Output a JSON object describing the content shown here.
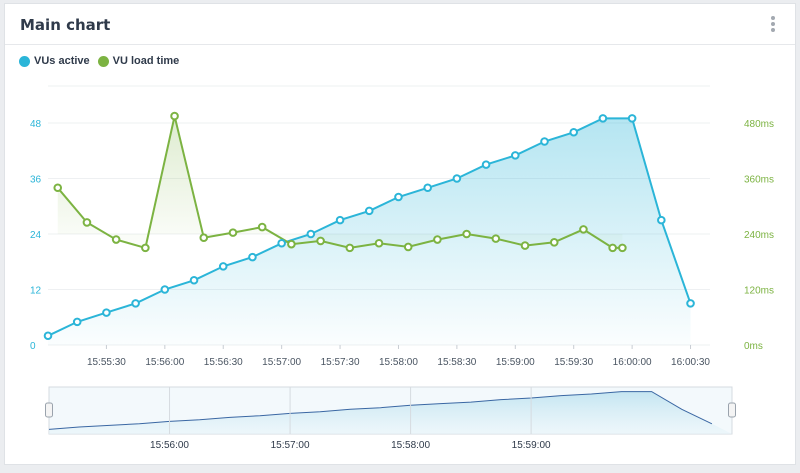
{
  "card": {
    "title": "Main chart"
  },
  "colors": {
    "vus": "#2bb5d8",
    "load": "#7cb342",
    "range_fill": "#e6f3f9",
    "range_line": "#3a67a3"
  },
  "chart_data": {
    "type": "line",
    "legend": [
      "VUs active",
      "VU load time"
    ],
    "legend_position": "top-left",
    "x_ticks": [
      "15:55:30",
      "15:56:00",
      "15:56:30",
      "15:57:00",
      "15:57:30",
      "15:58:00",
      "15:58:30",
      "15:59:00",
      "15:59:30",
      "16:00:00",
      "16:00:30"
    ],
    "y_left_ticks": [
      "0",
      "12",
      "24",
      "36",
      "48"
    ],
    "y_right_ticks": [
      "0ms",
      "120ms",
      "240ms",
      "360ms",
      "480ms"
    ],
    "y_left_range": [
      0,
      56
    ],
    "y_right_range": [
      0,
      560
    ],
    "x_range": [
      "15:55:00",
      "16:00:40"
    ],
    "series": [
      {
        "name": "VUs active",
        "axis": "left",
        "x": [
          "15:55:00",
          "15:55:15",
          "15:55:30",
          "15:55:45",
          "15:56:00",
          "15:56:15",
          "15:56:30",
          "15:56:45",
          "15:57:00",
          "15:57:15",
          "15:57:30",
          "15:57:45",
          "15:58:00",
          "15:58:15",
          "15:58:30",
          "15:58:45",
          "15:59:00",
          "15:59:15",
          "15:59:30",
          "15:59:45",
          "16:00:00",
          "16:00:15",
          "16:00:30"
        ],
        "values": [
          2,
          5,
          7,
          9,
          12,
          14,
          17,
          19,
          22,
          24,
          27,
          29,
          32,
          34,
          36,
          39,
          41,
          44,
          46,
          49,
          49,
          27,
          9
        ]
      },
      {
        "name": "VU load time",
        "axis": "right",
        "x": [
          "15:55:05",
          "15:55:20",
          "15:55:35",
          "15:55:50",
          "15:56:05",
          "15:56:20",
          "15:56:35",
          "15:56:50",
          "15:57:05",
          "15:57:20",
          "15:57:35",
          "15:57:50",
          "15:58:05",
          "15:58:20",
          "15:58:35",
          "15:58:50",
          "15:59:05",
          "15:59:20",
          "15:59:35",
          "15:59:50",
          "15:59:55"
        ],
        "values": [
          340,
          265,
          228,
          210,
          495,
          232,
          243,
          255,
          218,
          225,
          210,
          220,
          212,
          228,
          240,
          230,
          215,
          222,
          250,
          210,
          210
        ]
      }
    ],
    "navigator": {
      "x_ticks": [
        "15:56:00",
        "15:57:00",
        "15:58:00",
        "15:59:00"
      ]
    }
  }
}
